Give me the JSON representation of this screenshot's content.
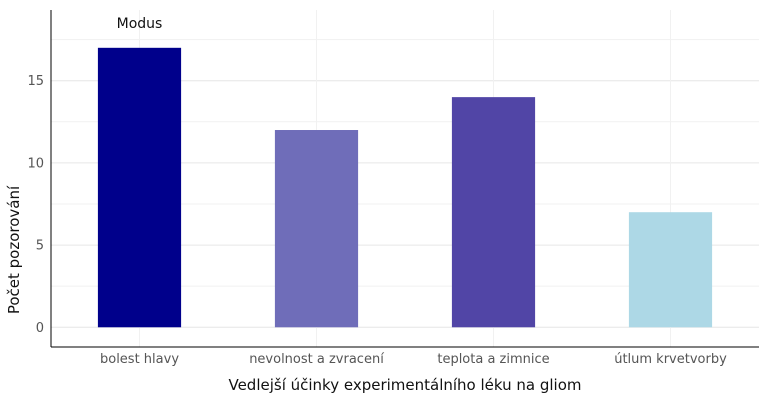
{
  "chart_data": {
    "type": "bar",
    "categories": [
      "bolest hlavy",
      "nevolnost a zvracení",
      "teplota a zimnice",
      "útlum krvetvorby"
    ],
    "values": [
      17,
      12,
      14,
      7
    ],
    "colors": [
      "#00008B",
      "#6F6DB9",
      "#5145A6",
      "#ADD8E6"
    ],
    "xlabel": "Vedlejší účinky experimentálního léku na gliom",
    "ylabel": "Počet pozorování",
    "ylim": [
      -1.2,
      19.3
    ],
    "yticks": [
      0,
      5,
      10,
      15
    ],
    "grid": true,
    "annotation": {
      "text": "Modus",
      "category": "bolest hlavy"
    }
  }
}
